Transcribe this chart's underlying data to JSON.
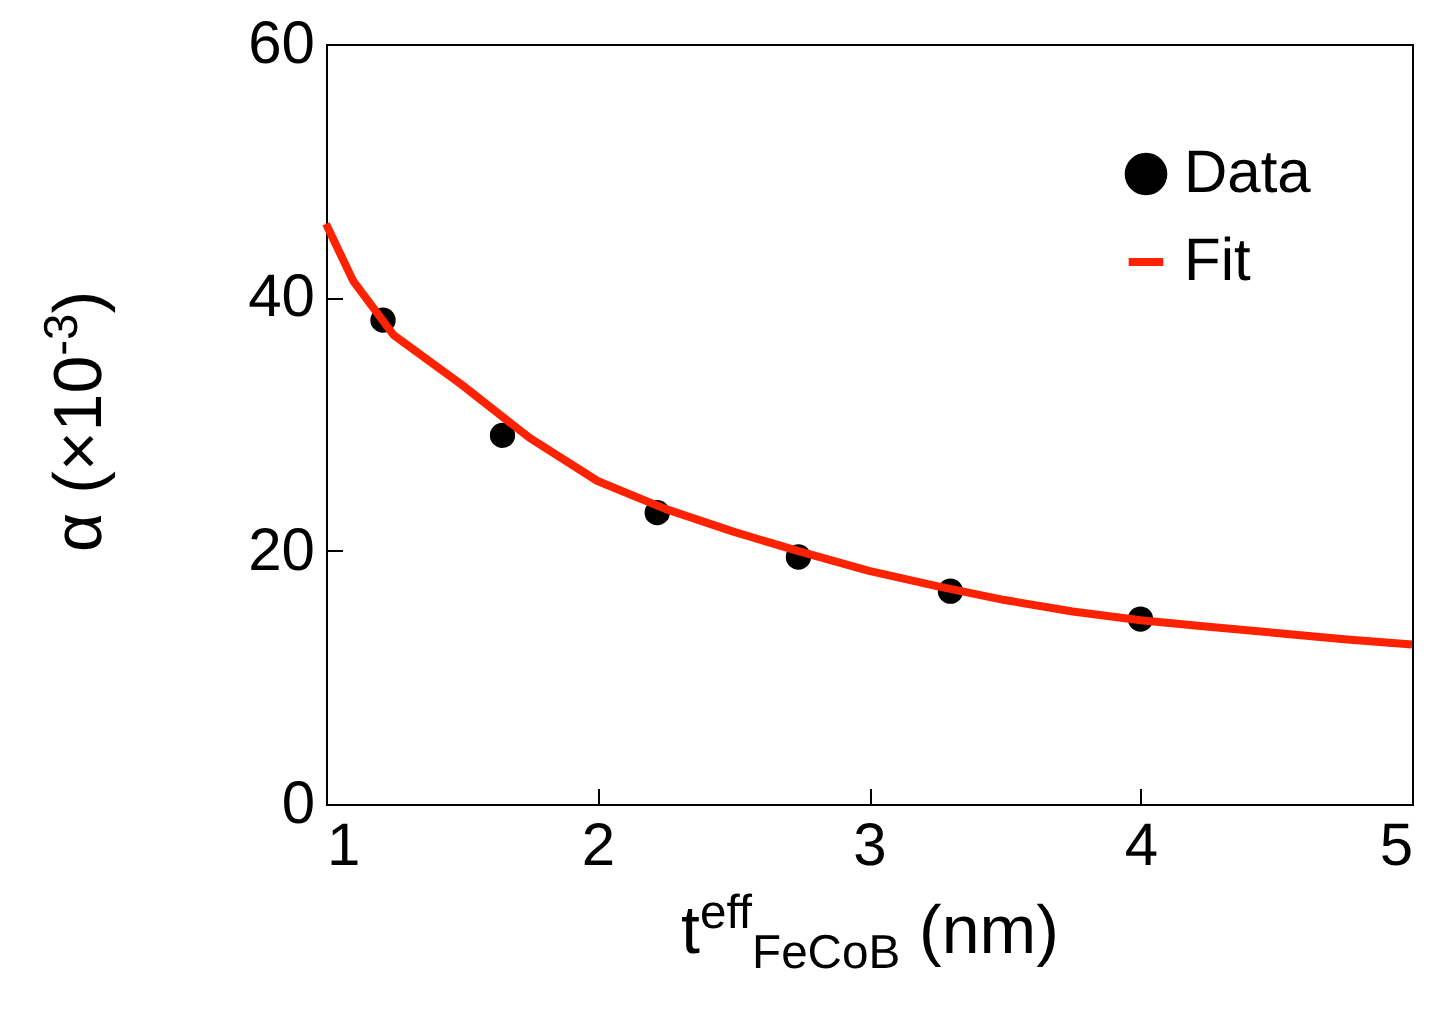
{
  "chart_data": {
    "type": "scatter",
    "xlabel": "t$^{eff}$$_{FeCoB}$ (nm)",
    "ylabel": "α (×10$^{-3}$)",
    "xlim": [
      1,
      5
    ],
    "xticks": [
      1,
      2,
      3,
      4,
      5
    ],
    "ylim": [
      0,
      60
    ],
    "yticks": [
      0,
      20,
      40,
      60
    ],
    "legend": "top right",
    "series": [
      {
        "name": "Data",
        "marker": "circle",
        "color": "#000000",
        "x": [
          1.21,
          1.65,
          2.22,
          2.74,
          3.3,
          4.0
        ],
        "values": [
          38.2,
          29.1,
          23.0,
          19.5,
          16.8,
          14.6
        ]
      },
      {
        "name": "Fit",
        "type": "line",
        "color": "#ff2200",
        "x": [
          1,
          1.1,
          1.25,
          1.5,
          1.75,
          2,
          2.25,
          2.5,
          2.75,
          3,
          3.25,
          3.5,
          3.75,
          4,
          4.25,
          4.5,
          4.75,
          5
        ],
        "values": [
          45.8,
          41.3,
          37.0,
          33.1,
          28.9,
          25.5,
          23.3,
          21.5,
          19.9,
          18.4,
          17.2,
          16.1,
          15.2,
          14.5,
          14.0,
          13.5,
          13.0,
          12.6
        ]
      }
    ]
  }
}
